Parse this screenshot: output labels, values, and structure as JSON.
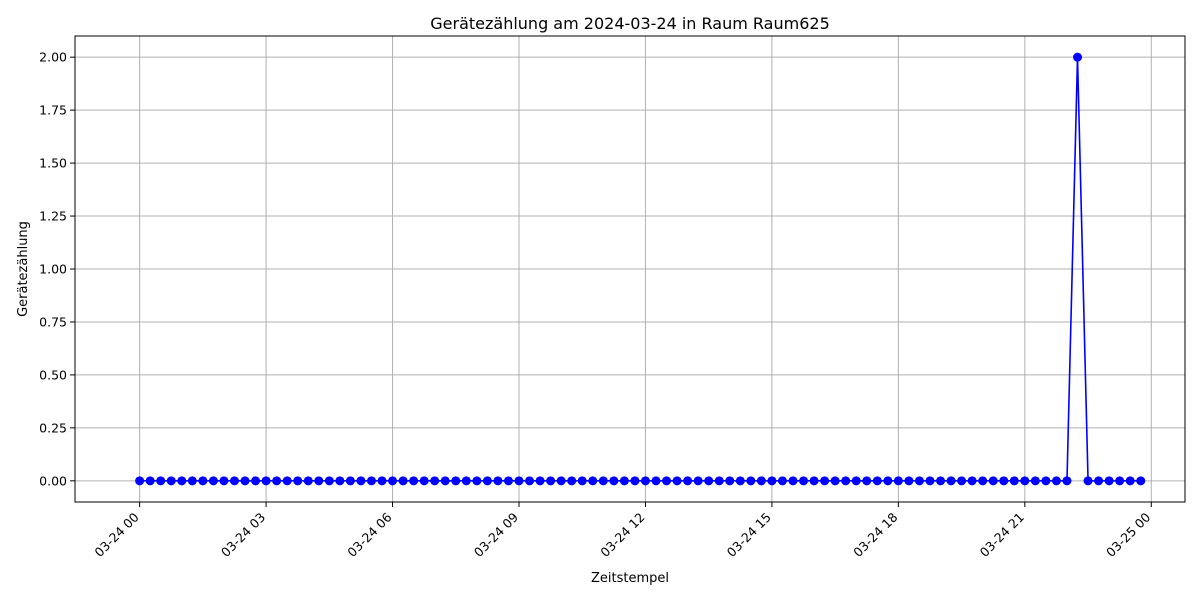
{
  "chart_data": {
    "type": "line",
    "title": "Gerätezählung am 2024-03-24 in Raum Raum625",
    "xlabel": "Zeitstempel",
    "ylabel": "Gerätezählung",
    "x_start": "2024-03-24 00:00",
    "x_interval_minutes": 15,
    "xlim": [
      "2024-03-23 22:28",
      "2024-03-25 00:48"
    ],
    "ylim": [
      -0.1,
      2.1
    ],
    "xticks": [
      "03-24 00",
      "03-24 03",
      "03-24 06",
      "03-24 09",
      "03-24 12",
      "03-24 15",
      "03-24 18",
      "03-24 21",
      "03-25 00"
    ],
    "yticks": [
      "0.00",
      "0.25",
      "0.50",
      "0.75",
      "1.00",
      "1.25",
      "1.50",
      "1.75",
      "2.00"
    ],
    "grid": true,
    "series": [
      {
        "color": "#0000ff",
        "marker": "circle",
        "values": [
          0,
          0,
          0,
          0,
          0,
          0,
          0,
          0,
          0,
          0,
          0,
          0,
          0,
          0,
          0,
          0,
          0,
          0,
          0,
          0,
          0,
          0,
          0,
          0,
          0,
          0,
          0,
          0,
          0,
          0,
          0,
          0,
          0,
          0,
          0,
          0,
          0,
          0,
          0,
          0,
          0,
          0,
          0,
          0,
          0,
          0,
          0,
          0,
          0,
          0,
          0,
          0,
          0,
          0,
          0,
          0,
          0,
          0,
          0,
          0,
          0,
          0,
          0,
          0,
          0,
          0,
          0,
          0,
          0,
          0,
          0,
          0,
          0,
          0,
          0,
          0,
          0,
          0,
          0,
          0,
          0,
          0,
          0,
          0,
          0,
          0,
          0,
          0,
          0,
          2,
          0,
          0,
          0,
          0,
          0,
          0
        ]
      }
    ]
  }
}
